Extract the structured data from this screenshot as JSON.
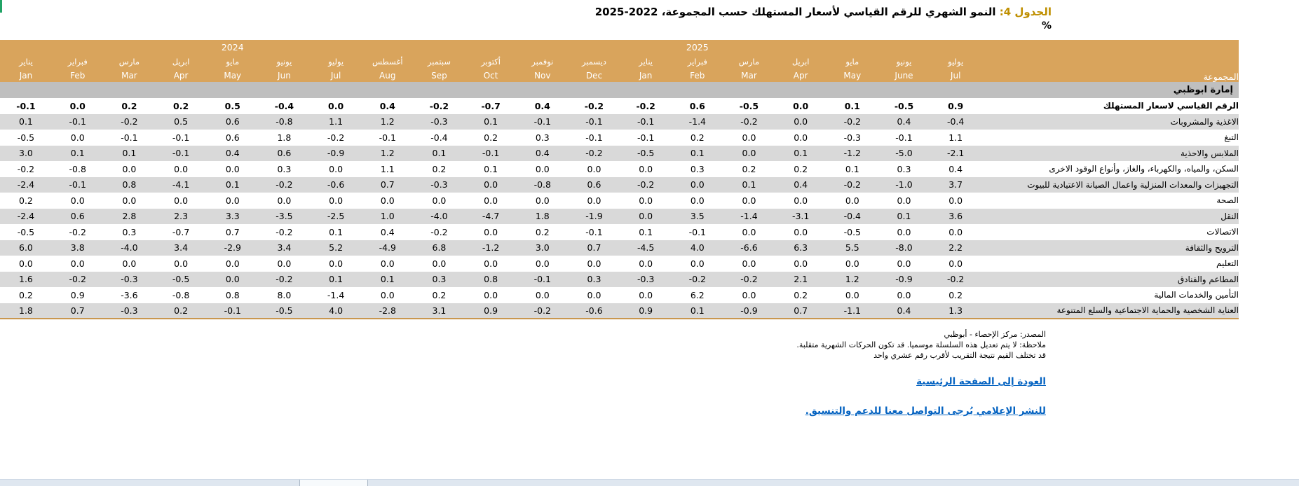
{
  "title": {
    "label": "الجدول 4:",
    "text": "النمو الشهري للرقم القياسي لأسعار المستهلك حسب المجموعة،",
    "years_display": "2025-2022",
    "unit": "%"
  },
  "colors": {
    "header_band": "#D9A45C",
    "section_band": "#BFBFBF",
    "alt_row": "#D9D9D9",
    "title_label": "#BF8F00",
    "link_blue": "#0563C1",
    "table_bottom_border": "#C9974F"
  },
  "table": {
    "group_header": "المجموعة",
    "section_header": "إمارة ابوظبي",
    "year_row": [
      "",
      "",
      "",
      "",
      "2024",
      "",
      "",
      "",
      "",
      "",
      "",
      "",
      "",
      "2025",
      "",
      "",
      "",
      "",
      ""
    ],
    "months_ar": [
      "يناير",
      "فبراير",
      "مارس",
      "ابريل",
      "مايو",
      "يونيو",
      "يوليو",
      "أغسطس",
      "سبتمبر",
      "أكتوبر",
      "نوفمبر",
      "ديسمبر",
      "يناير",
      "فبراير",
      "مارس",
      "ابريل",
      "مايو",
      "يونيو",
      "يوليو"
    ],
    "months_en": [
      "Jan",
      "Feb",
      "Mar",
      "Apr",
      "May",
      "Jun",
      "Jul",
      "Aug",
      "Sep",
      "Oct",
      "Nov",
      "Dec",
      "Jan",
      "Feb",
      "Mar",
      "Apr",
      "May",
      "June",
      "Jul"
    ],
    "rows": [
      {
        "label": "الرقم القياسي لاسعار المستهلك",
        "bold": true,
        "values": [
          "-0.1",
          "0.0",
          "0.2",
          "0.2",
          "0.5",
          "-0.4",
          "0.0",
          "0.4",
          "-0.2",
          "-0.7",
          "0.4",
          "-0.2",
          "-0.2",
          "0.6",
          "-0.5",
          "0.0",
          "0.1",
          "-0.5",
          "0.9"
        ]
      },
      {
        "label": "الاغذية والمشروبات",
        "bold": false,
        "values": [
          "0.1",
          "-0.1",
          "-0.2",
          "0.5",
          "0.6",
          "-0.8",
          "1.1",
          "1.2",
          "-0.3",
          "0.1",
          "-0.1",
          "-0.1",
          "-0.1",
          "-1.4",
          "-0.2",
          "0.0",
          "-0.2",
          "0.4",
          "-0.4"
        ]
      },
      {
        "label": "التبغ",
        "bold": false,
        "values": [
          "-0.5",
          "0.0",
          "-0.1",
          "-0.1",
          "0.6",
          "1.8",
          "-0.2",
          "-0.1",
          "-0.4",
          "0.2",
          "0.3",
          "-0.1",
          "-0.1",
          "0.2",
          "0.0",
          "0.0",
          "-0.3",
          "-0.1",
          "1.1"
        ]
      },
      {
        "label": "الملابس والاحذية",
        "bold": false,
        "values": [
          "3.0",
          "0.1",
          "0.1",
          "-0.1",
          "0.4",
          "0.6",
          "-0.9",
          "1.2",
          "0.1",
          "-0.1",
          "0.4",
          "-0.2",
          "-0.5",
          "0.1",
          "0.0",
          "0.1",
          "-1.2",
          "-5.0",
          "-2.1"
        ]
      },
      {
        "label": "السكن، والمياه، والكهرباء، والغاز، وأنواع الوقود الاخرى",
        "bold": false,
        "values": [
          "-0.2",
          "-0.8",
          "0.0",
          "0.0",
          "0.0",
          "0.3",
          "0.0",
          "1.1",
          "0.2",
          "0.1",
          "0.0",
          "0.0",
          "0.0",
          "0.3",
          "0.2",
          "0.2",
          "0.1",
          "0.3",
          "0.4"
        ]
      },
      {
        "label": "التجهيزات والمعدات المنزلية واعمال الصيانة الاعتيادية للبيوت",
        "bold": false,
        "values": [
          "-2.4",
          "-0.1",
          "0.8",
          "-4.1",
          "0.1",
          "-0.2",
          "-0.6",
          "0.7",
          "-0.3",
          "0.0",
          "-0.8",
          "0.6",
          "-0.2",
          "0.0",
          "0.1",
          "0.4",
          "-0.2",
          "-1.0",
          "3.7"
        ]
      },
      {
        "label": "الصحة",
        "bold": false,
        "values": [
          "0.2",
          "0.0",
          "0.0",
          "0.0",
          "0.0",
          "0.0",
          "0.0",
          "0.0",
          "0.0",
          "0.0",
          "0.0",
          "0.0",
          "0.0",
          "0.0",
          "0.0",
          "0.0",
          "0.0",
          "0.0",
          "0.0"
        ]
      },
      {
        "label": "النقل",
        "bold": false,
        "values": [
          "-2.4",
          "0.6",
          "2.8",
          "2.3",
          "3.3",
          "-3.5",
          "-2.5",
          "1.0",
          "-4.0",
          "-4.7",
          "1.8",
          "-1.9",
          "0.0",
          "3.5",
          "-1.4",
          "-3.1",
          "-0.4",
          "0.1",
          "3.6"
        ]
      },
      {
        "label": "الاتصالات",
        "bold": false,
        "values": [
          "-0.5",
          "-0.2",
          "0.3",
          "-0.7",
          "0.7",
          "-0.2",
          "0.1",
          "0.4",
          "-0.2",
          "0.0",
          "0.2",
          "-0.1",
          "0.1",
          "-0.1",
          "0.0",
          "0.0",
          "-0.5",
          "0.0",
          "0.0"
        ]
      },
      {
        "label": "الترويح والثقافة",
        "bold": false,
        "values": [
          "6.0",
          "3.8",
          "-4.0",
          "3.4",
          "-2.9",
          "3.4",
          "5.2",
          "-4.9",
          "6.8",
          "-1.2",
          "3.0",
          "0.7",
          "-4.5",
          "4.0",
          "-6.6",
          "6.3",
          "5.5",
          "-8.0",
          "2.2"
        ]
      },
      {
        "label": "التعليم",
        "bold": false,
        "values": [
          "0.0",
          "0.0",
          "0.0",
          "0.0",
          "0.0",
          "0.0",
          "0.0",
          "0.0",
          "0.0",
          "0.0",
          "0.0",
          "0.0",
          "0.0",
          "0.0",
          "0.0",
          "0.0",
          "0.0",
          "0.0",
          "0.0"
        ]
      },
      {
        "label": "المطاعم والفنادق",
        "bold": false,
        "values": [
          "1.6",
          "-0.2",
          "-0.3",
          "-0.5",
          "0.0",
          "-0.2",
          "0.1",
          "0.1",
          "0.3",
          "0.8",
          "-0.1",
          "0.3",
          "-0.3",
          "-0.2",
          "-0.2",
          "2.1",
          "1.2",
          "-0.9",
          "-0.2"
        ]
      },
      {
        "label": "التأمين والخدمات المالية",
        "bold": false,
        "values": [
          "0.2",
          "0.9",
          "-3.6",
          "-0.8",
          "0.8",
          "8.0",
          "-1.4",
          "0.0",
          "0.2",
          "0.0",
          "0.0",
          "0.0",
          "0.0",
          "6.2",
          "0.0",
          "0.2",
          "0.0",
          "0.0",
          "0.2"
        ]
      },
      {
        "label": "العناية الشخصية والحماية الاجتماعية والسلع المتنوعة",
        "bold": false,
        "values": [
          "1.8",
          "0.7",
          "-0.3",
          "0.2",
          "-0.1",
          "-0.5",
          "4.0",
          "-2.8",
          "3.1",
          "0.9",
          "-0.2",
          "-0.6",
          "0.9",
          "0.1",
          "-0.9",
          "0.7",
          "-1.1",
          "0.4",
          "1.3"
        ]
      }
    ]
  },
  "footer": {
    "source": "المصدر: مركز الإحصاء - أبوظبي",
    "note1": "ملاحظة: لا يتم تعديل هذه السلسلة موسميا. قد تكون الحركات الشهرية متقلبة.",
    "note2": "قد تختلف القيم نتيجة التقريب لأقرب رقم عشري واحد",
    "link_home": "العودة إلى الصفحة الرئيسية",
    "link_media": "للنشر الإعلامي يُرجى التواصل معنا للدعم والتنسيق."
  }
}
